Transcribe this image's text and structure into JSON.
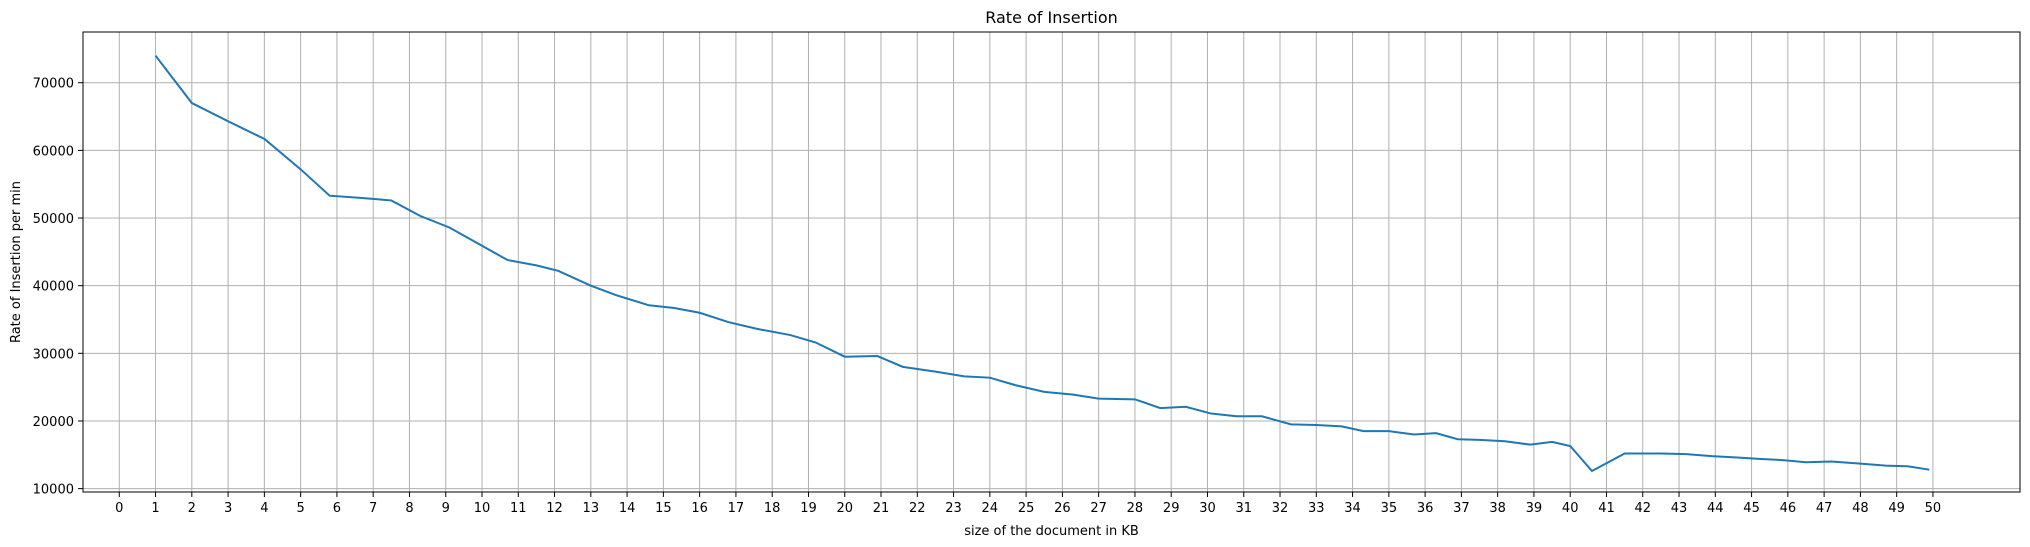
{
  "chart_data": {
    "type": "line",
    "title": "Rate of Insertion",
    "xlabel": "size of the document in KB",
    "ylabel": "Rate of Insertion per min",
    "xlim": [
      -1.0,
      52.4
    ],
    "ylim": [
      9500,
      77500
    ],
    "x_ticks": [
      0,
      1,
      2,
      3,
      4,
      5,
      6,
      7,
      8,
      9,
      10,
      11,
      12,
      13,
      14,
      15,
      16,
      17,
      18,
      19,
      20,
      21,
      22,
      23,
      24,
      25,
      26,
      27,
      28,
      29,
      30,
      31,
      32,
      33,
      34,
      35,
      36,
      37,
      38,
      39,
      40,
      41,
      42,
      43,
      44,
      45,
      46,
      47,
      48,
      49,
      50
    ],
    "y_ticks": [
      10000,
      20000,
      30000,
      40000,
      50000,
      60000,
      70000
    ],
    "grid": true,
    "line_color": "#1f77b4",
    "series": [
      {
        "x": [
          1,
          2,
          3,
          4,
          5,
          5.8,
          6.6,
          7.5,
          8.3,
          9.1,
          10,
          10.7,
          11.5,
          12.1,
          13,
          13.7,
          14.6,
          15.3,
          16,
          16.8,
          17.6,
          18.5,
          19.2,
          20,
          20.9,
          21.6,
          22.5,
          23.3,
          24,
          24.7,
          25.5,
          26.3,
          27,
          28,
          28.7,
          29.4,
          30.1,
          30.8,
          31.5,
          32.3,
          33,
          33.7,
          34.3,
          35,
          35.7,
          36.3,
          36.9,
          37.5,
          38.2,
          38.9,
          39.5,
          40,
          40.6,
          41.5,
          42.5,
          43.2,
          43.9,
          44.6,
          45.2,
          45.9,
          46.5,
          47.2,
          48,
          48.7,
          49.3,
          49.9
        ],
        "y": [
          74000,
          67000,
          64300,
          61700,
          57200,
          53300,
          53000,
          52600,
          50300,
          48600,
          45900,
          43800,
          43000,
          42200,
          40000,
          38600,
          37100,
          36700,
          36000,
          34600,
          33600,
          32700,
          31600,
          29500,
          29600,
          28000,
          27300,
          26600,
          26400,
          25300,
          24300,
          23900,
          23300,
          23200,
          21900,
          22100,
          21100,
          20700,
          20700,
          19500,
          19400,
          19200,
          18500,
          18500,
          18000,
          18200,
          17300,
          17200,
          17000,
          16500,
          16900,
          16300,
          12600,
          15200,
          15200,
          15100,
          14800,
          14600,
          14400,
          14200,
          13900,
          14000,
          13700,
          13400,
          13300,
          12800
        ]
      }
    ]
  }
}
